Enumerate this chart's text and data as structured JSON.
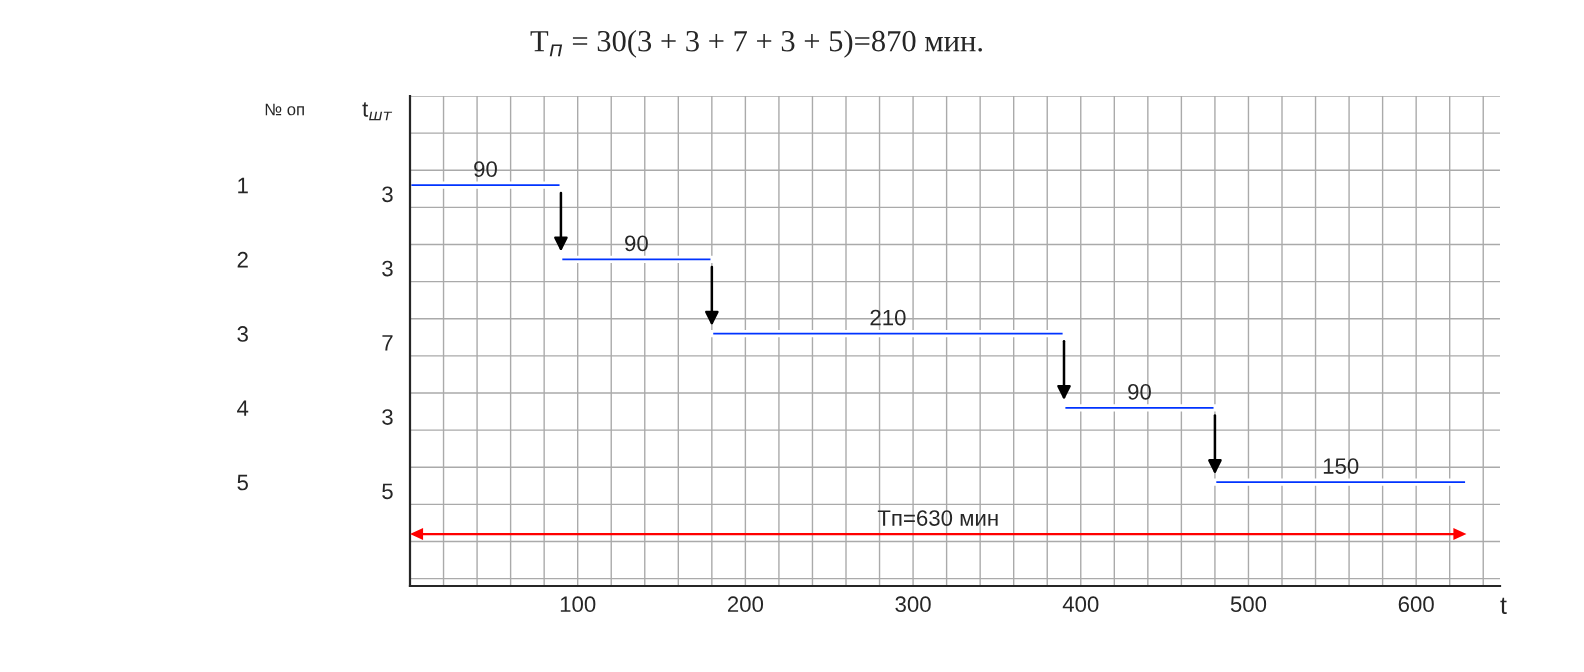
{
  "chart_data": {
    "type": "bar",
    "orientation": "horizontal",
    "title": "T$_{п}$ = 30(3 + 3 + 7 + 3 + 5)=870 мин.",
    "ylabel": "№ оп",
    "y2label": "t$_{шт}$",
    "xlabel": "t",
    "categories": [
      "1",
      "2",
      "3",
      "4",
      "5"
    ],
    "values": [
      90,
      90,
      210,
      90,
      150
    ],
    "base": [
      0,
      90,
      180,
      390,
      480
    ],
    "color": "#0033ff",
    "data_labels": true,
    "xlim": [
      0,
      650
    ],
    "xticks": [
      100,
      200,
      300,
      400,
      500,
      600
    ],
    "grid": true,
    "annotations": [
      "3",
      "3",
      "7",
      "3",
      "5",
      "Tп=630 мин"
    ]
  }
}
